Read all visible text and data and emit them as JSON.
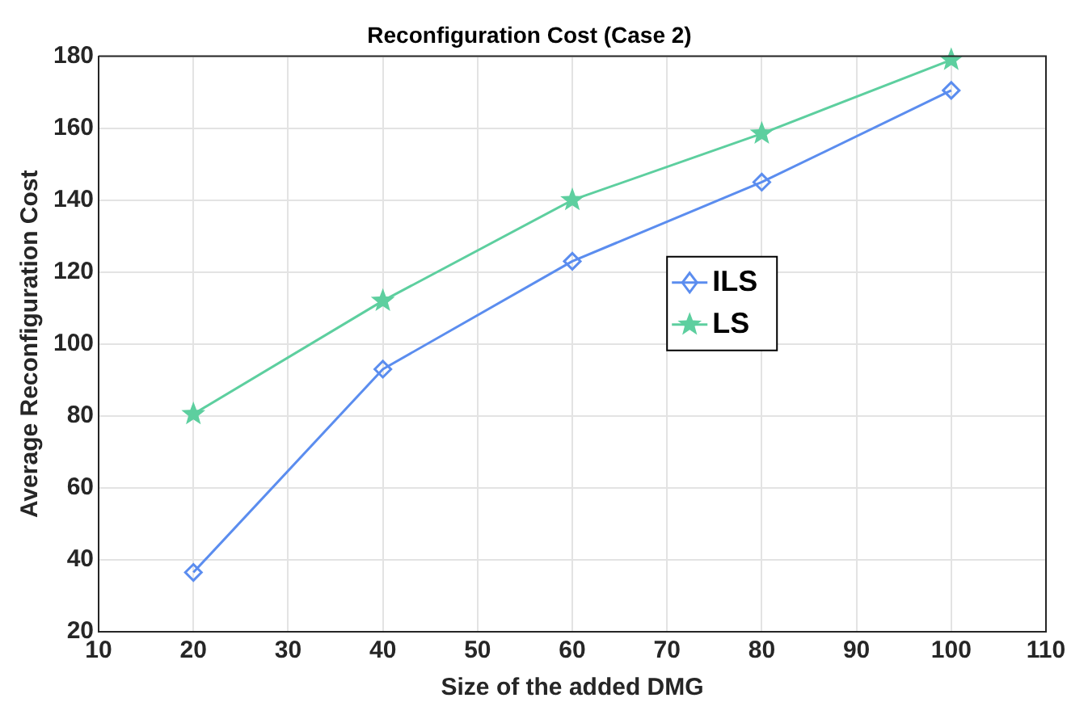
{
  "chart_data": {
    "type": "line",
    "title": "Reconfiguration Cost (Case 2)",
    "xlabel": "Size of the added DMG",
    "ylabel": "Average Reconfiguration Cost",
    "x": [
      20,
      40,
      60,
      80,
      100
    ],
    "series": [
      {
        "name": "ILS",
        "color": "#5b8def",
        "values": [
          36.5,
          93,
          123,
          145,
          170.5
        ],
        "marker": "diamond"
      },
      {
        "name": "LS",
        "color": "#5dcf9f",
        "values": [
          80.5,
          112,
          140,
          158.5,
          179
        ],
        "marker": "star"
      }
    ],
    "xlim": [
      10,
      110
    ],
    "xticks": [
      10,
      20,
      30,
      40,
      50,
      60,
      70,
      80,
      90,
      100,
      110
    ],
    "ylim": [
      20,
      180
    ],
    "yticks": [
      20,
      40,
      60,
      80,
      100,
      120,
      140,
      160,
      180
    ],
    "grid": true,
    "legend": "right",
    "line_style": "solid"
  }
}
